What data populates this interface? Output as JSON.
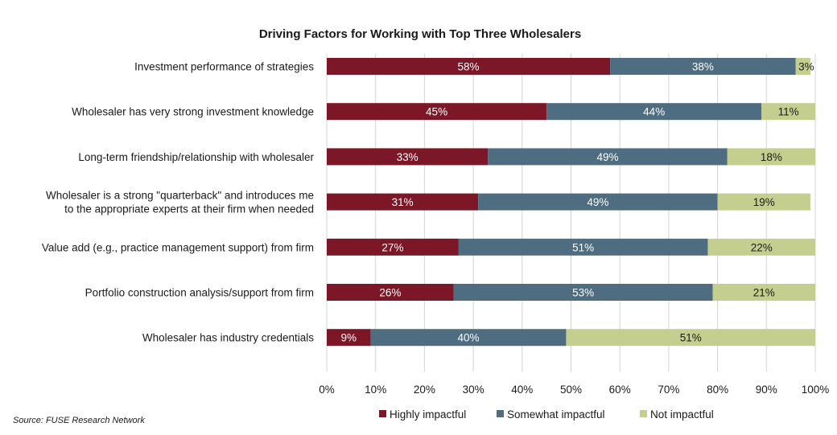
{
  "chart_data": {
    "type": "bar",
    "orientation": "horizontal",
    "stacked": true,
    "title": "Driving Factors for Working with Top Three Wholesalers",
    "categories": [
      "Investment performance of strategies",
      "Wholesaler has very strong investment knowledge",
      "Long-term friendship/relationship with wholesaler",
      "Wholesaler is a strong \"quarterback\" and introduces me|to the appropriate experts at their firm when needed",
      "Value add (e.g., practice management support) from firm",
      "Portfolio construction analysis/support from firm",
      "Wholesaler has industry credentials"
    ],
    "series": [
      {
        "name": "Highly impactful",
        "color": "#7b1727",
        "label_color": "#ffffff",
        "values": [
          58,
          45,
          33,
          31,
          27,
          26,
          9
        ],
        "labels": [
          "58%",
          "45%",
          "33%",
          "31%",
          "27%",
          "26%",
          "9%"
        ]
      },
      {
        "name": "Somewhat impactful",
        "color": "#4f6d80",
        "label_color": "#ffffff",
        "values": [
          38,
          44,
          49,
          49,
          51,
          53,
          40
        ],
        "labels": [
          "38%",
          "44%",
          "49%",
          "49%",
          "51%",
          "53%",
          "40%"
        ]
      },
      {
        "name": "Not impactful",
        "color": "#c4cf8f",
        "label_color": "#1a1a1a",
        "values": [
          3,
          11,
          18,
          19,
          22,
          21,
          51
        ],
        "labels": [
          "3%",
          "11%",
          "18%",
          "19%",
          "22%",
          "21%",
          "51%"
        ]
      }
    ],
    "xlim": [
      0,
      100
    ],
    "xticks": [
      "0%",
      "10%",
      "20%",
      "30%",
      "40%",
      "50%",
      "60%",
      "70%",
      "80%",
      "90%",
      "100%"
    ],
    "grid": true,
    "legend_position": "bottom",
    "source": "Source:  FUSE Research Network"
  }
}
